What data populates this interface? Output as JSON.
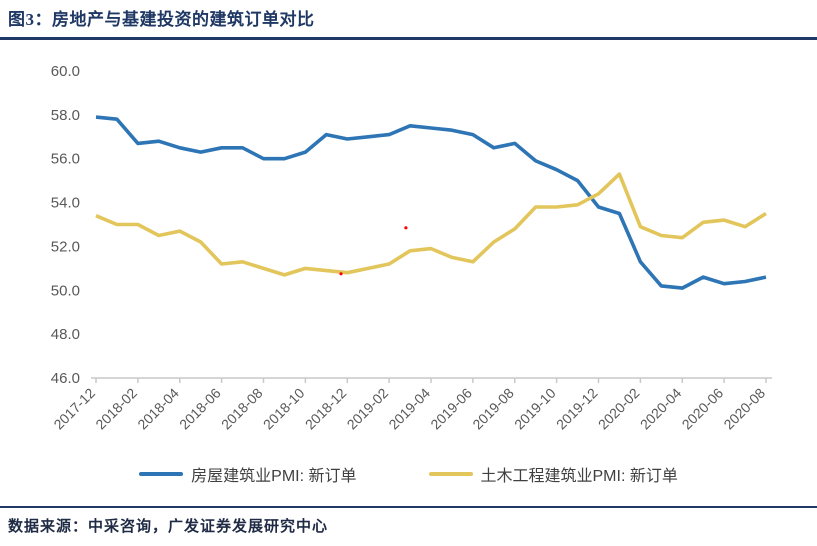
{
  "header": {
    "title": "图3：房地产与基建投资的建筑订单对比"
  },
  "footer": {
    "source": "数据来源：中采咨询，广发证券发展研究中心"
  },
  "chart_data": {
    "type": "line",
    "x": [
      "2017-12",
      "2018-01",
      "2018-02",
      "2018-03",
      "2018-04",
      "2018-05",
      "2018-06",
      "2018-07",
      "2018-08",
      "2018-09",
      "2018-10",
      "2018-11",
      "2018-12",
      "2019-01",
      "2019-02",
      "2019-03",
      "2019-04",
      "2019-05",
      "2019-06",
      "2019-07",
      "2019-08",
      "2019-09",
      "2019-10",
      "2019-11",
      "2019-12",
      "2020-01",
      "2020-02",
      "2020-03",
      "2020-04",
      "2020-05",
      "2020-06",
      "2020-07",
      "2020-08"
    ],
    "x_tick_label_every": 2,
    "x_tick_labels": [
      "2017-12",
      "2018-02",
      "2018-04",
      "2018-06",
      "2018-08",
      "2018-10",
      "2018-12",
      "2019-02",
      "2019-04",
      "2019-06",
      "2019-08",
      "2019-10",
      "2019-12",
      "2020-02",
      "2020-04",
      "2020-06",
      "2020-08"
    ],
    "series": [
      {
        "name": "房屋建筑业PMI: 新订单",
        "color": "#2e75b6",
        "values": [
          57.9,
          57.8,
          56.7,
          56.8,
          56.5,
          56.3,
          56.5,
          56.5,
          56.0,
          56.0,
          56.3,
          57.1,
          56.9,
          57.0,
          57.1,
          57.5,
          57.4,
          57.3,
          57.1,
          56.5,
          56.7,
          55.9,
          55.5,
          55.0,
          53.8,
          53.5,
          51.3,
          50.2,
          50.1,
          50.6,
          50.3,
          50.4,
          50.6
        ]
      },
      {
        "name": "土木工程建筑业PMI: 新订单",
        "color": "#e2c65c",
        "values": [
          53.4,
          53.0,
          53.0,
          52.5,
          52.7,
          52.2,
          51.2,
          51.3,
          51.0,
          50.7,
          51.0,
          50.9,
          50.8,
          51.0,
          51.2,
          51.8,
          51.9,
          51.5,
          51.3,
          52.2,
          52.8,
          53.8,
          53.8,
          53.9,
          54.4,
          55.3,
          52.9,
          52.5,
          52.4,
          53.1,
          53.2,
          52.9,
          53.5
        ]
      }
    ],
    "ylim": [
      46.0,
      60.0
    ],
    "yticks": [
      "60.0",
      "58.0",
      "56.0",
      "54.0",
      "52.0",
      "50.0",
      "48.0",
      "46.0"
    ],
    "grid": false,
    "legend_position": "bottom",
    "axis_color": "#c8c8c8",
    "tick_label_color": "#595959",
    "stray_dots": [
      {
        "x_index": 11.7,
        "value": 50.75,
        "color": "#ff0000"
      },
      {
        "x_index": 14.8,
        "value": 52.85,
        "color": "#ff0000"
      }
    ]
  }
}
